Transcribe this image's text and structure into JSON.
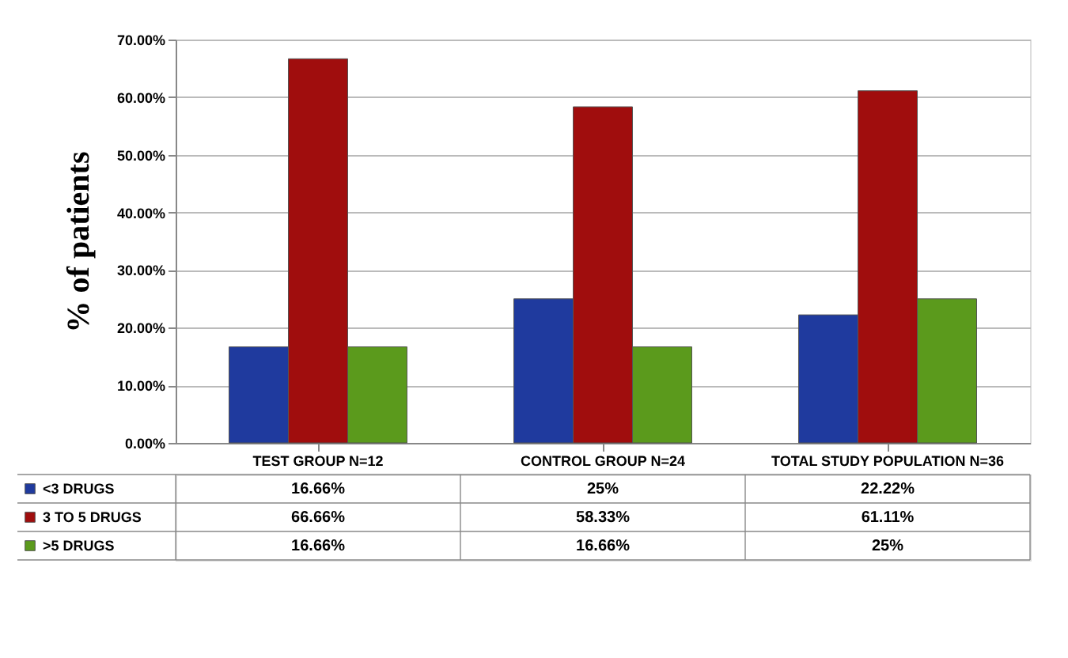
{
  "chart_data": {
    "type": "bar",
    "ylabel": "% of patients",
    "categories": [
      "TEST GROUP N=12",
      "CONTROL GROUP N=24",
      "TOTAL STUDY POPULATION N=36"
    ],
    "series": [
      {
        "name": "<3 DRUGS",
        "color": "#1f3a9e",
        "values": [
          16.66,
          25,
          22.22
        ],
        "value_labels": [
          "16.66%",
          "25%",
          "22.22%"
        ]
      },
      {
        "name": "3 TO 5 DRUGS",
        "color": "#a00d0d",
        "values": [
          66.66,
          58.33,
          61.11
        ],
        "value_labels": [
          "66.66%",
          "58.33%",
          "61.11%"
        ]
      },
      {
        "name": ">5 DRUGS",
        "color": "#5b9a1c",
        "values": [
          16.66,
          16.66,
          25
        ],
        "value_labels": [
          "16.66%",
          "16.66%",
          "25%"
        ]
      }
    ],
    "ylim": [
      0,
      70
    ],
    "yticks": [
      {
        "value": 0,
        "label": "0.00%"
      },
      {
        "value": 10,
        "label": "10.00%"
      },
      {
        "value": 20,
        "label": "20.00%"
      },
      {
        "value": 30,
        "label": "30.00%"
      },
      {
        "value": 40,
        "label": "40.00%"
      },
      {
        "value": 50,
        "label": "50.00%"
      },
      {
        "value": 60,
        "label": "60.00%"
      },
      {
        "value": 70,
        "label": "70.00%"
      }
    ],
    "grid": "y",
    "legend": "bottom"
  }
}
